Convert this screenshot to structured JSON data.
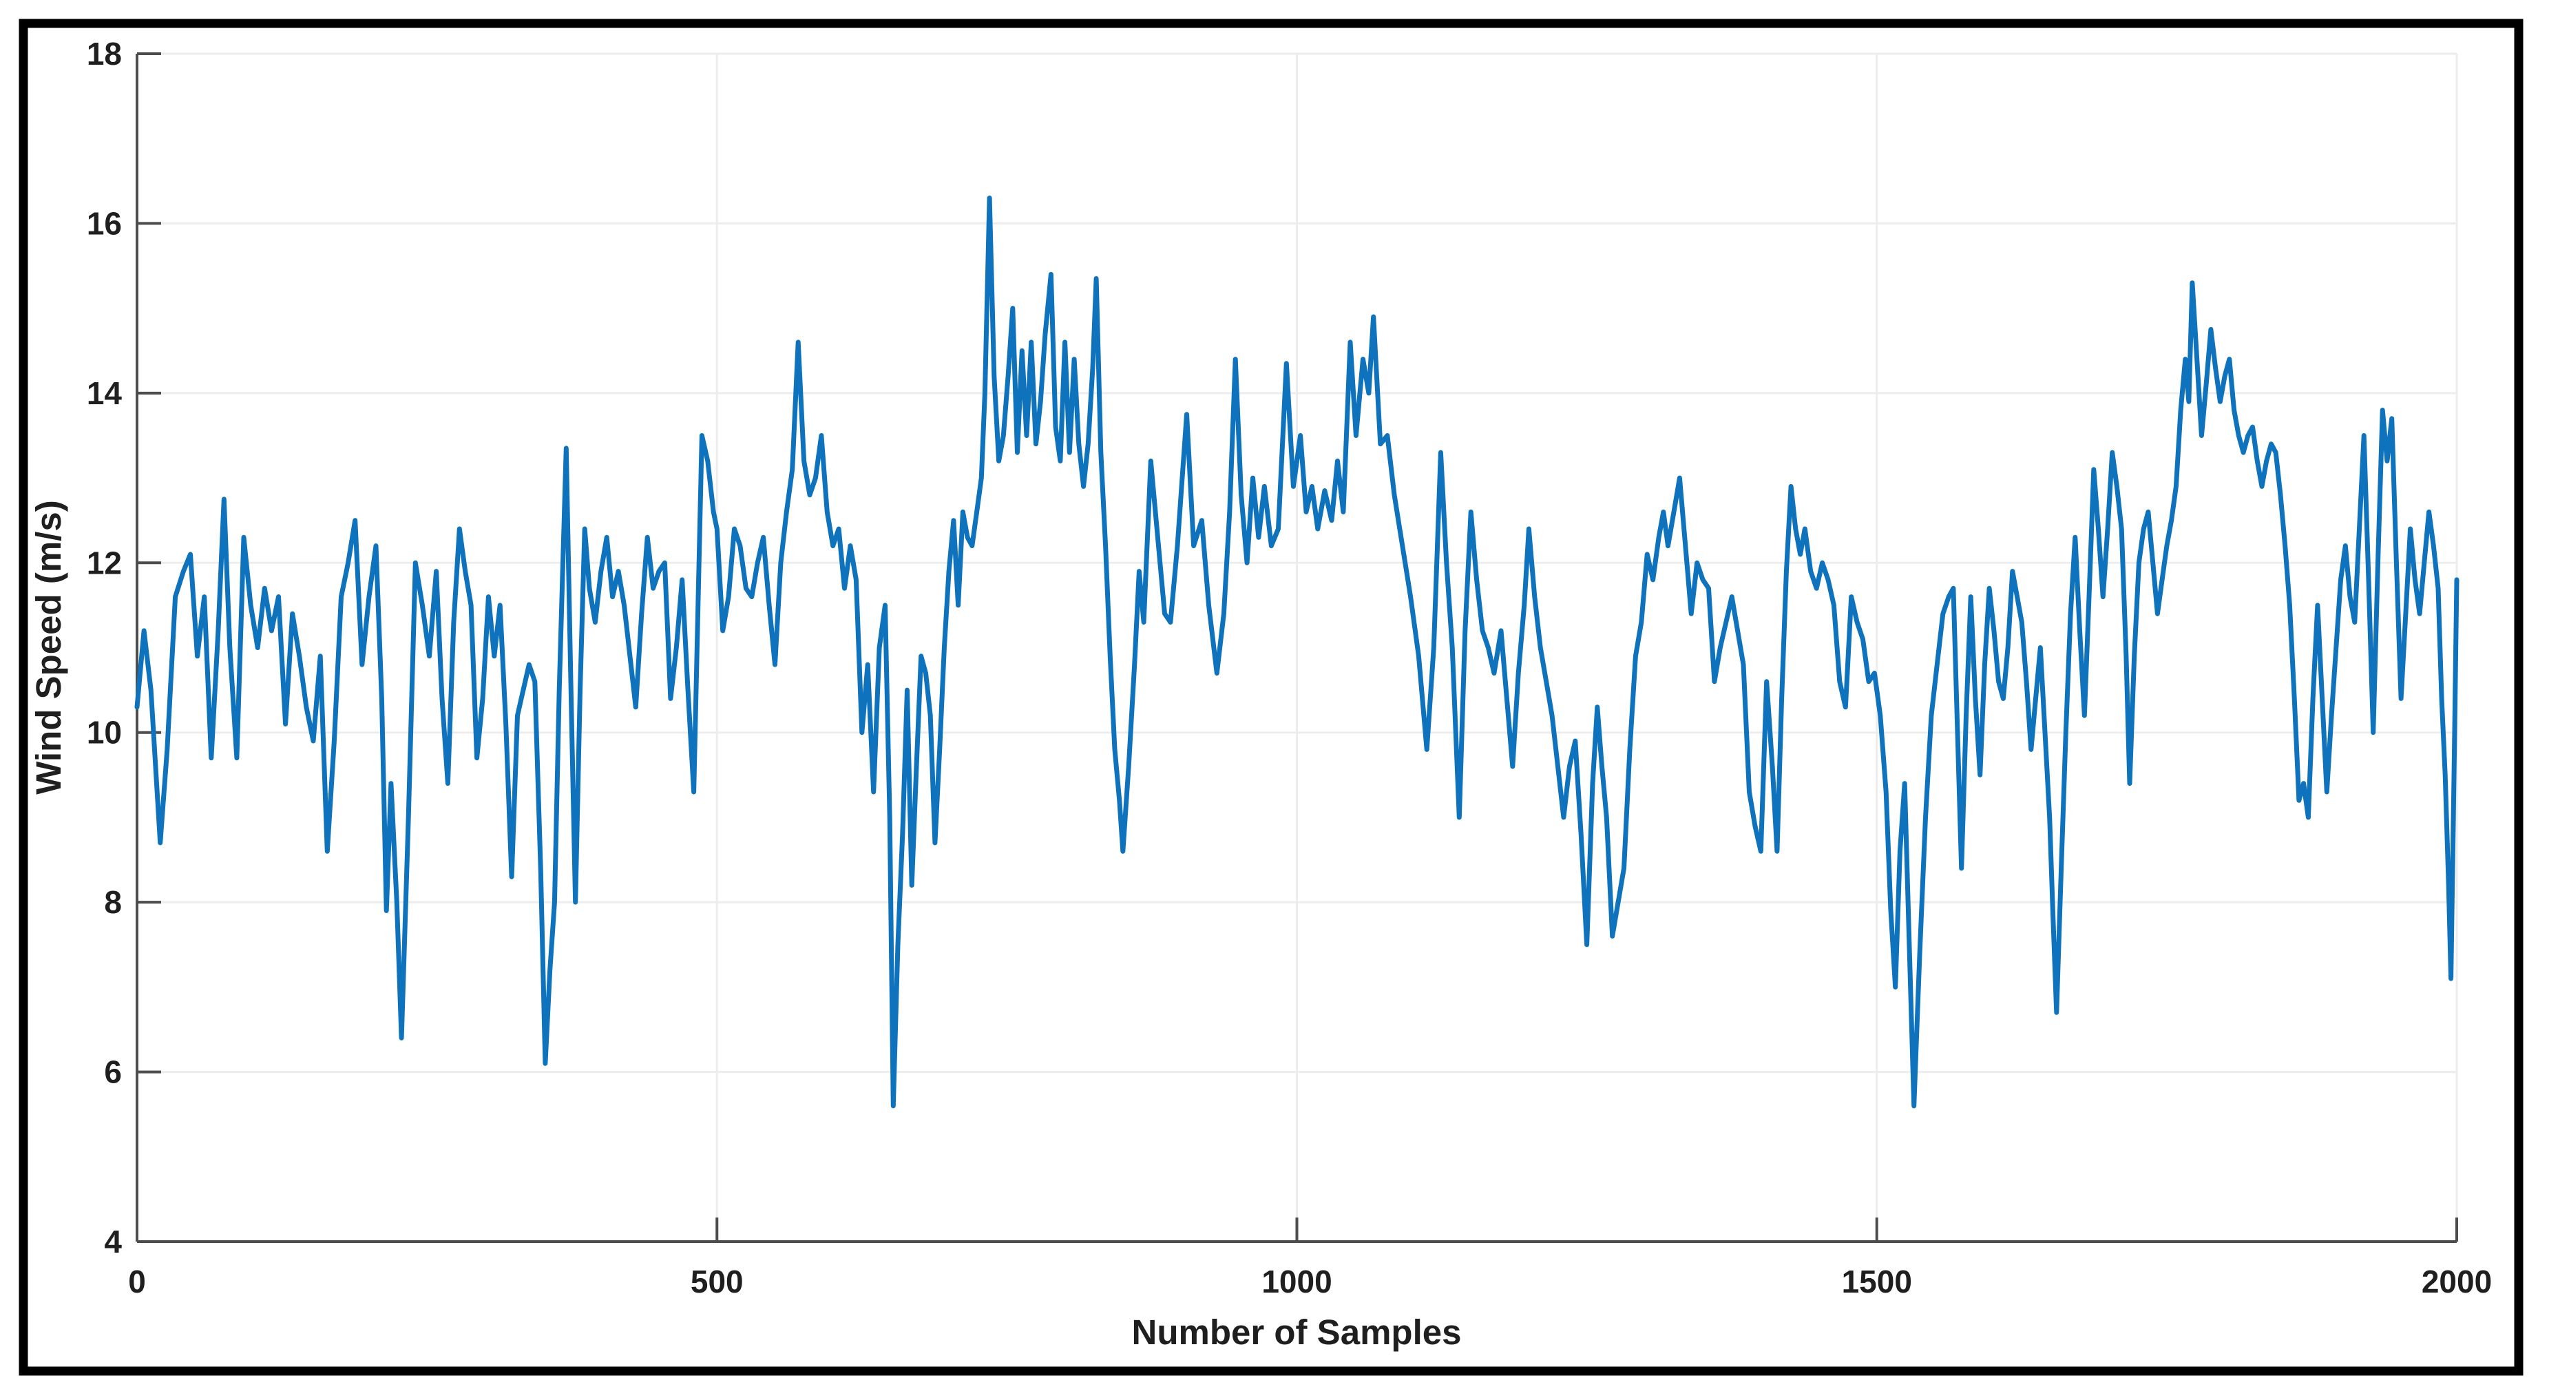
{
  "figure": {
    "border_color": "#000000",
    "background": "#ffffff"
  },
  "chart_data": {
    "type": "line",
    "title": "",
    "xlabel": "Number of Samples",
    "ylabel": "Wind Speed (m/s)",
    "xlim": [
      0,
      2000
    ],
    "ylim": [
      4,
      18
    ],
    "xticks": [
      0,
      500,
      1000,
      1500,
      2000
    ],
    "yticks": [
      4,
      6,
      8,
      10,
      12,
      14,
      16,
      18
    ],
    "grid": true,
    "legend": null,
    "line_color": "#0e72bc",
    "grid_color": "#ededed",
    "axis_color": "#4d4d4d",
    "label_color": "#1f1f1f",
    "series_name": "wind-speed",
    "points": [
      [
        0,
        10.3
      ],
      [
        6,
        11.2
      ],
      [
        12,
        10.5
      ],
      [
        20,
        8.7
      ],
      [
        26,
        9.8
      ],
      [
        33,
        11.6
      ],
      [
        40,
        11.9
      ],
      [
        46,
        12.1
      ],
      [
        52,
        10.9
      ],
      [
        58,
        11.6
      ],
      [
        64,
        9.7
      ],
      [
        70,
        11.2
      ],
      [
        75,
        12.75
      ],
      [
        80,
        11.0
      ],
      [
        86,
        9.7
      ],
      [
        92,
        12.3
      ],
      [
        98,
        11.5
      ],
      [
        104,
        11.0
      ],
      [
        110,
        11.7
      ],
      [
        116,
        11.2
      ],
      [
        122,
        11.6
      ],
      [
        128,
        10.1
      ],
      [
        134,
        11.4
      ],
      [
        140,
        10.9
      ],
      [
        146,
        10.3
      ],
      [
        152,
        9.9
      ],
      [
        158,
        10.9
      ],
      [
        164,
        8.6
      ],
      [
        170,
        9.9
      ],
      [
        176,
        11.6
      ],
      [
        182,
        12.0
      ],
      [
        188,
        12.5
      ],
      [
        194,
        10.8
      ],
      [
        200,
        11.6
      ],
      [
        206,
        12.2
      ],
      [
        211,
        10.4
      ],
      [
        215,
        7.9
      ],
      [
        219,
        9.4
      ],
      [
        224,
        8.0
      ],
      [
        228,
        6.4
      ],
      [
        234,
        9.0
      ],
      [
        240,
        12.0
      ],
      [
        246,
        11.5
      ],
      [
        252,
        10.9
      ],
      [
        258,
        11.9
      ],
      [
        263,
        10.4
      ],
      [
        268,
        9.4
      ],
      [
        273,
        11.3
      ],
      [
        278,
        12.4
      ],
      [
        283,
        11.9
      ],
      [
        288,
        11.5
      ],
      [
        293,
        9.7
      ],
      [
        298,
        10.4
      ],
      [
        303,
        11.6
      ],
      [
        308,
        10.9
      ],
      [
        313,
        11.5
      ],
      [
        318,
        10.1
      ],
      [
        323,
        8.3
      ],
      [
        328,
        10.2
      ],
      [
        333,
        10.5
      ],
      [
        338,
        10.8
      ],
      [
        343,
        10.6
      ],
      [
        348,
        8.4
      ],
      [
        352,
        6.1
      ],
      [
        356,
        7.2
      ],
      [
        360,
        8.0
      ],
      [
        364,
        10.5
      ],
      [
        370,
        13.35
      ],
      [
        374,
        10.6
      ],
      [
        378,
        8.0
      ],
      [
        382,
        10.5
      ],
      [
        386,
        12.4
      ],
      [
        390,
        11.7
      ],
      [
        395,
        11.3
      ],
      [
        400,
        11.9
      ],
      [
        405,
        12.3
      ],
      [
        410,
        11.6
      ],
      [
        415,
        11.9
      ],
      [
        420,
        11.5
      ],
      [
        425,
        10.9
      ],
      [
        430,
        10.3
      ],
      [
        435,
        11.4
      ],
      [
        440,
        12.3
      ],
      [
        445,
        11.7
      ],
      [
        450,
        11.9
      ],
      [
        455,
        12.0
      ],
      [
        460,
        10.4
      ],
      [
        465,
        11.0
      ],
      [
        470,
        11.8
      ],
      [
        475,
        10.5
      ],
      [
        480,
        9.3
      ],
      [
        487,
        13.5
      ],
      [
        492,
        13.2
      ],
      [
        497,
        12.6
      ],
      [
        500,
        12.4
      ],
      [
        505,
        11.2
      ],
      [
        510,
        11.6
      ],
      [
        515,
        12.4
      ],
      [
        520,
        12.2
      ],
      [
        525,
        11.7
      ],
      [
        530,
        11.6
      ],
      [
        535,
        12.0
      ],
      [
        540,
        12.3
      ],
      [
        545,
        11.5
      ],
      [
        550,
        10.8
      ],
      [
        555,
        12.0
      ],
      [
        560,
        12.6
      ],
      [
        565,
        13.1
      ],
      [
        570,
        14.6
      ],
      [
        575,
        13.2
      ],
      [
        580,
        12.8
      ],
      [
        585,
        13.0
      ],
      [
        590,
        13.5
      ],
      [
        595,
        12.6
      ],
      [
        600,
        12.2
      ],
      [
        605,
        12.4
      ],
      [
        610,
        11.7
      ],
      [
        615,
        12.2
      ],
      [
        620,
        11.8
      ],
      [
        625,
        10.0
      ],
      [
        630,
        10.8
      ],
      [
        635,
        9.3
      ],
      [
        640,
        11.0
      ],
      [
        645,
        11.5
      ],
      [
        649,
        9.0
      ],
      [
        652,
        5.6
      ],
      [
        656,
        7.5
      ],
      [
        660,
        8.8
      ],
      [
        664,
        10.5
      ],
      [
        668,
        8.2
      ],
      [
        672,
        9.6
      ],
      [
        676,
        10.9
      ],
      [
        680,
        10.7
      ],
      [
        684,
        10.2
      ],
      [
        688,
        8.7
      ],
      [
        692,
        9.8
      ],
      [
        696,
        11.0
      ],
      [
        700,
        11.9
      ],
      [
        704,
        12.5
      ],
      [
        708,
        11.5
      ],
      [
        712,
        12.6
      ],
      [
        716,
        12.3
      ],
      [
        720,
        12.2
      ],
      [
        724,
        12.6
      ],
      [
        728,
        13.0
      ],
      [
        731,
        14.0
      ],
      [
        735,
        16.3
      ],
      [
        739,
        14.2
      ],
      [
        743,
        13.2
      ],
      [
        747,
        13.5
      ],
      [
        751,
        14.2
      ],
      [
        755,
        15.0
      ],
      [
        759,
        13.3
      ],
      [
        763,
        14.5
      ],
      [
        767,
        13.5
      ],
      [
        771,
        14.6
      ],
      [
        775,
        13.4
      ],
      [
        779,
        13.9
      ],
      [
        783,
        14.7
      ],
      [
        788,
        15.4
      ],
      [
        792,
        13.6
      ],
      [
        796,
        13.2
      ],
      [
        800,
        14.6
      ],
      [
        804,
        13.3
      ],
      [
        808,
        14.4
      ],
      [
        812,
        13.4
      ],
      [
        816,
        12.9
      ],
      [
        820,
        13.4
      ],
      [
        824,
        14.3
      ],
      [
        827,
        15.35
      ],
      [
        831,
        13.3
      ],
      [
        835,
        12.2
      ],
      [
        839,
        10.9
      ],
      [
        843,
        9.8
      ],
      [
        847,
        9.2
      ],
      [
        850,
        8.6
      ],
      [
        855,
        9.6
      ],
      [
        860,
        10.8
      ],
      [
        864,
        11.9
      ],
      [
        868,
        11.3
      ],
      [
        874,
        13.2
      ],
      [
        880,
        12.3
      ],
      [
        886,
        11.4
      ],
      [
        891,
        11.3
      ],
      [
        897,
        12.2
      ],
      [
        905,
        13.75
      ],
      [
        911,
        12.2
      ],
      [
        918,
        12.5
      ],
      [
        924,
        11.5
      ],
      [
        931,
        10.7
      ],
      [
        937,
        11.4
      ],
      [
        942,
        12.6
      ],
      [
        947,
        14.4
      ],
      [
        952,
        12.8
      ],
      [
        957,
        12.0
      ],
      [
        962,
        13.0
      ],
      [
        967,
        12.3
      ],
      [
        972,
        12.9
      ],
      [
        978,
        12.2
      ],
      [
        984,
        12.4
      ],
      [
        991,
        14.35
      ],
      [
        997,
        12.9
      ],
      [
        1003,
        13.5
      ],
      [
        1008,
        12.6
      ],
      [
        1013,
        12.9
      ],
      [
        1018,
        12.4
      ],
      [
        1024,
        12.85
      ],
      [
        1030,
        12.5
      ],
      [
        1035,
        13.2
      ],
      [
        1040,
        12.6
      ],
      [
        1046,
        14.6
      ],
      [
        1051,
        13.5
      ],
      [
        1057,
        14.4
      ],
      [
        1062,
        14.0
      ],
      [
        1066,
        14.9
      ],
      [
        1072,
        13.4
      ],
      [
        1078,
        13.5
      ],
      [
        1084,
        12.8
      ],
      [
        1091,
        12.2
      ],
      [
        1098,
        11.6
      ],
      [
        1105,
        10.9
      ],
      [
        1112,
        9.8
      ],
      [
        1118,
        11.0
      ],
      [
        1124,
        13.3
      ],
      [
        1129,
        12.0
      ],
      [
        1134,
        11.0
      ],
      [
        1140,
        9.0
      ],
      [
        1145,
        11.2
      ],
      [
        1150,
        12.6
      ],
      [
        1155,
        11.8
      ],
      [
        1160,
        11.2
      ],
      [
        1165,
        11.0
      ],
      [
        1170,
        10.7
      ],
      [
        1176,
        11.2
      ],
      [
        1181,
        10.4
      ],
      [
        1186,
        9.6
      ],
      [
        1191,
        10.7
      ],
      [
        1196,
        11.5
      ],
      [
        1200,
        12.4
      ],
      [
        1205,
        11.6
      ],
      [
        1210,
        11.0
      ],
      [
        1215,
        10.6
      ],
      [
        1220,
        10.2
      ],
      [
        1225,
        9.6
      ],
      [
        1230,
        9.0
      ],
      [
        1235,
        9.6
      ],
      [
        1240,
        9.9
      ],
      [
        1245,
        8.8
      ],
      [
        1250,
        7.5
      ],
      [
        1255,
        9.4
      ],
      [
        1259,
        10.3
      ],
      [
        1263,
        9.6
      ],
      [
        1267,
        9.0
      ],
      [
        1272,
        7.6
      ],
      [
        1277,
        8.0
      ],
      [
        1282,
        8.4
      ],
      [
        1287,
        9.8
      ],
      [
        1292,
        10.9
      ],
      [
        1297,
        11.3
      ],
      [
        1302,
        12.1
      ],
      [
        1307,
        11.8
      ],
      [
        1312,
        12.3
      ],
      [
        1316,
        12.6
      ],
      [
        1320,
        12.2
      ],
      [
        1325,
        12.6
      ],
      [
        1330,
        13.0
      ],
      [
        1335,
        12.2
      ],
      [
        1340,
        11.4
      ],
      [
        1345,
        12.0
      ],
      [
        1350,
        11.8
      ],
      [
        1355,
        11.7
      ],
      [
        1360,
        10.6
      ],
      [
        1365,
        11.0
      ],
      [
        1370,
        11.3
      ],
      [
        1375,
        11.6
      ],
      [
        1380,
        11.2
      ],
      [
        1385,
        10.8
      ],
      [
        1390,
        9.3
      ],
      [
        1395,
        8.9
      ],
      [
        1400,
        8.6
      ],
      [
        1405,
        10.6
      ],
      [
        1410,
        9.6
      ],
      [
        1414,
        8.6
      ],
      [
        1418,
        10.4
      ],
      [
        1422,
        11.9
      ],
      [
        1426,
        12.9
      ],
      [
        1430,
        12.4
      ],
      [
        1434,
        12.1
      ],
      [
        1438,
        12.4
      ],
      [
        1443,
        11.9
      ],
      [
        1448,
        11.7
      ],
      [
        1453,
        12.0
      ],
      [
        1458,
        11.8
      ],
      [
        1463,
        11.5
      ],
      [
        1468,
        10.6
      ],
      [
        1473,
        10.3
      ],
      [
        1478,
        11.6
      ],
      [
        1483,
        11.3
      ],
      [
        1488,
        11.1
      ],
      [
        1493,
        10.6
      ],
      [
        1498,
        10.7
      ],
      [
        1503,
        10.2
      ],
      [
        1508,
        9.3
      ],
      [
        1512,
        7.9
      ],
      [
        1516,
        7.0
      ],
      [
        1520,
        8.6
      ],
      [
        1524,
        9.4
      ],
      [
        1528,
        7.5
      ],
      [
        1532,
        5.6
      ],
      [
        1537,
        7.4
      ],
      [
        1542,
        9.0
      ],
      [
        1547,
        10.2
      ],
      [
        1552,
        10.8
      ],
      [
        1557,
        11.4
      ],
      [
        1562,
        11.6
      ],
      [
        1566,
        11.7
      ],
      [
        1570,
        9.8
      ],
      [
        1573,
        8.4
      ],
      [
        1577,
        10.2
      ],
      [
        1581,
        11.6
      ],
      [
        1585,
        10.4
      ],
      [
        1589,
        9.5
      ],
      [
        1593,
        10.8
      ],
      [
        1597,
        11.7
      ],
      [
        1601,
        11.2
      ],
      [
        1605,
        10.6
      ],
      [
        1609,
        10.4
      ],
      [
        1613,
        11.0
      ],
      [
        1617,
        11.9
      ],
      [
        1621,
        11.6
      ],
      [
        1625,
        11.3
      ],
      [
        1629,
        10.6
      ],
      [
        1633,
        9.8
      ],
      [
        1637,
        10.4
      ],
      [
        1641,
        11.0
      ],
      [
        1645,
        10.0
      ],
      [
        1649,
        9.0
      ],
      [
        1652,
        7.8
      ],
      [
        1655,
        6.7
      ],
      [
        1659,
        8.4
      ],
      [
        1663,
        10.0
      ],
      [
        1667,
        11.4
      ],
      [
        1671,
        12.3
      ],
      [
        1675,
        11.2
      ],
      [
        1679,
        10.2
      ],
      [
        1683,
        11.6
      ],
      [
        1687,
        13.1
      ],
      [
        1691,
        12.4
      ],
      [
        1695,
        11.6
      ],
      [
        1699,
        12.4
      ],
      [
        1703,
        13.3
      ],
      [
        1707,
        12.9
      ],
      [
        1711,
        12.4
      ],
      [
        1715,
        10.9
      ],
      [
        1718,
        9.4
      ],
      [
        1722,
        10.9
      ],
      [
        1726,
        12.0
      ],
      [
        1730,
        12.4
      ],
      [
        1734,
        12.6
      ],
      [
        1738,
        12.0
      ],
      [
        1742,
        11.4
      ],
      [
        1746,
        11.8
      ],
      [
        1750,
        12.2
      ],
      [
        1754,
        12.5
      ],
      [
        1758,
        12.9
      ],
      [
        1762,
        13.8
      ],
      [
        1766,
        14.4
      ],
      [
        1769,
        13.9
      ],
      [
        1772,
        15.3
      ],
      [
        1776,
        14.4
      ],
      [
        1780,
        13.5
      ],
      [
        1784,
        14.1
      ],
      [
        1788,
        14.75
      ],
      [
        1792,
        14.3
      ],
      [
        1796,
        13.9
      ],
      [
        1800,
        14.2
      ],
      [
        1804,
        14.4
      ],
      [
        1808,
        13.8
      ],
      [
        1812,
        13.5
      ],
      [
        1816,
        13.3
      ],
      [
        1820,
        13.5
      ],
      [
        1824,
        13.6
      ],
      [
        1828,
        13.2
      ],
      [
        1832,
        12.9
      ],
      [
        1836,
        13.2
      ],
      [
        1840,
        13.4
      ],
      [
        1844,
        13.3
      ],
      [
        1848,
        12.8
      ],
      [
        1852,
        12.2
      ],
      [
        1856,
        11.5
      ],
      [
        1860,
        10.4
      ],
      [
        1864,
        9.2
      ],
      [
        1868,
        9.4
      ],
      [
        1872,
        9.0
      ],
      [
        1876,
        10.4
      ],
      [
        1880,
        11.5
      ],
      [
        1884,
        10.4
      ],
      [
        1888,
        9.3
      ],
      [
        1892,
        10.2
      ],
      [
        1896,
        11.0
      ],
      [
        1900,
        11.8
      ],
      [
        1904,
        12.2
      ],
      [
        1908,
        11.6
      ],
      [
        1912,
        11.3
      ],
      [
        1916,
        12.4
      ],
      [
        1920,
        13.5
      ],
      [
        1924,
        11.8
      ],
      [
        1928,
        10.0
      ],
      [
        1932,
        12.0
      ],
      [
        1936,
        13.8
      ],
      [
        1940,
        13.2
      ],
      [
        1944,
        13.7
      ],
      [
        1948,
        12.0
      ],
      [
        1952,
        10.4
      ],
      [
        1956,
        11.4
      ],
      [
        1960,
        12.4
      ],
      [
        1964,
        11.8
      ],
      [
        1968,
        11.4
      ],
      [
        1972,
        12.0
      ],
      [
        1976,
        12.6
      ],
      [
        1980,
        12.2
      ],
      [
        1984,
        11.7
      ],
      [
        1987,
        10.4
      ],
      [
        1990,
        9.5
      ],
      [
        1993,
        8.2
      ],
      [
        1995,
        7.1
      ],
      [
        1998,
        9.8
      ],
      [
        2000,
        11.8
      ]
    ]
  }
}
